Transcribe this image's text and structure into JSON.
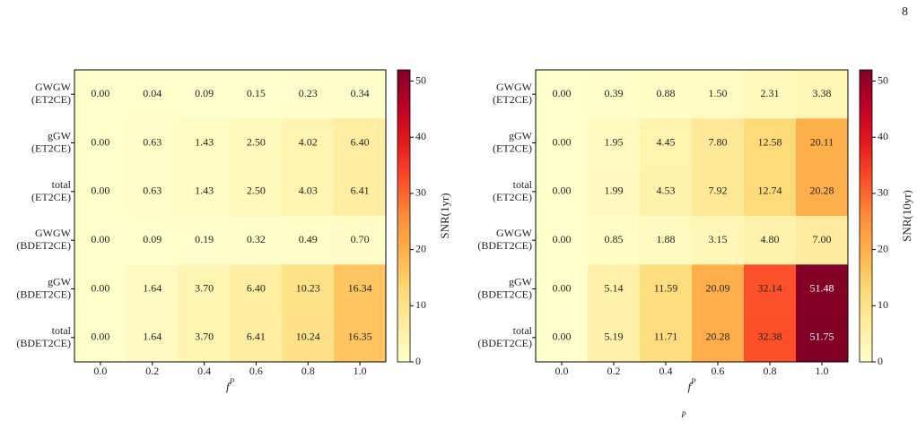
{
  "page_number": "8",
  "footer_fragment": "P",
  "chart_data": [
    {
      "type": "heatmap",
      "x": [
        "0.0",
        "0.2",
        "0.4",
        "0.6",
        "0.8",
        "1.0"
      ],
      "xlabel": "f",
      "xlabel_superscript": "P",
      "y": [
        [
          "GWGW",
          "(ET2CE)"
        ],
        [
          "gGW",
          "(ET2CE)"
        ],
        [
          "total",
          "(ET2CE)"
        ],
        [
          "GWGW",
          "(BDET2CE)"
        ],
        [
          "gGW",
          "(BDET2CE)"
        ],
        [
          "total",
          "(BDET2CE)"
        ]
      ],
      "values": [
        [
          0,
          0.04,
          0.09,
          0.15,
          0.23,
          0.34
        ],
        [
          0,
          0.63,
          1.43,
          2.5,
          4.02,
          6.4
        ],
        [
          0,
          0.63,
          1.43,
          2.5,
          4.03,
          6.41
        ],
        [
          0,
          0.09,
          0.19,
          0.32,
          0.49,
          0.7
        ],
        [
          0,
          1.64,
          3.7,
          6.4,
          10.23,
          16.34
        ],
        [
          0,
          1.64,
          3.7,
          6.41,
          10.24,
          16.35
        ]
      ],
      "value_labels": [
        [
          "0.00",
          "0.04",
          "0.09",
          "0.15",
          "0.23",
          "0.34"
        ],
        [
          "0.00",
          "0.63",
          "1.43",
          "2.50",
          "4.02",
          "6.40"
        ],
        [
          "0.00",
          "0.63",
          "1.43",
          "2.50",
          "4.03",
          "6.41"
        ],
        [
          "0.00",
          "0.09",
          "0.19",
          "0.32",
          "0.49",
          "0.70"
        ],
        [
          "0.00",
          "1.64",
          "3.70",
          "6.40",
          "10.23",
          "16.34"
        ],
        [
          "0.00",
          "1.64",
          "3.70",
          "6.41",
          "10.24",
          "16.35"
        ]
      ],
      "zlim": [
        0,
        52
      ],
      "zticks": [
        0,
        10,
        20,
        30,
        40,
        50
      ],
      "colorbar_label": "SNR(1yr)",
      "colormap": [
        "#ffffcc",
        "#ffeda0",
        "#fed976",
        "#feb24c",
        "#fd8d3c",
        "#fc4e2a",
        "#e31a1c",
        "#bd0026",
        "#800026"
      ]
    },
    {
      "type": "heatmap",
      "x": [
        "0.0",
        "0.2",
        "0.4",
        "0.6",
        "0.8",
        "1.0"
      ],
      "xlabel": "f",
      "xlabel_superscript": "P",
      "y": [
        [
          "GWGW",
          "(ET2CE)"
        ],
        [
          "gGW",
          "(ET2CE)"
        ],
        [
          "total",
          "(ET2CE)"
        ],
        [
          "GWGW",
          "(BDET2CE)"
        ],
        [
          "gGW",
          "(BDET2CE)"
        ],
        [
          "total",
          "(BDET2CE)"
        ]
      ],
      "values": [
        [
          0,
          0.39,
          0.88,
          1.5,
          2.31,
          3.38
        ],
        [
          0,
          1.95,
          4.45,
          7.8,
          12.58,
          20.11
        ],
        [
          0,
          1.99,
          4.53,
          7.92,
          12.74,
          20.28
        ],
        [
          0,
          0.85,
          1.88,
          3.15,
          4.8,
          7
        ],
        [
          0,
          5.14,
          11.59,
          20.09,
          32.14,
          51.48
        ],
        [
          0,
          5.19,
          11.71,
          20.28,
          32.38,
          51.75
        ]
      ],
      "value_labels": [
        [
          "0.00",
          "0.39",
          "0.88",
          "1.50",
          "2.31",
          "3.38"
        ],
        [
          "0.00",
          "1.95",
          "4.45",
          "7.80",
          "12.58",
          "20.11"
        ],
        [
          "0.00",
          "1.99",
          "4.53",
          "7.92",
          "12.74",
          "20.28"
        ],
        [
          "0.00",
          "0.85",
          "1.88",
          "3.15",
          "4.80",
          "7.00"
        ],
        [
          "0.00",
          "5.14",
          "11.59",
          "20.09",
          "32.14",
          "51.48"
        ],
        [
          "0.00",
          "5.19",
          "11.71",
          "20.28",
          "32.38",
          "51.75"
        ]
      ],
      "zlim": [
        0,
        52
      ],
      "zticks": [
        0,
        10,
        20,
        30,
        40,
        50
      ],
      "colorbar_label": "SNR(10yr)",
      "colormap": [
        "#ffffcc",
        "#ffeda0",
        "#fed976",
        "#feb24c",
        "#fd8d3c",
        "#fc4e2a",
        "#e31a1c",
        "#bd0026",
        "#800026"
      ]
    }
  ]
}
